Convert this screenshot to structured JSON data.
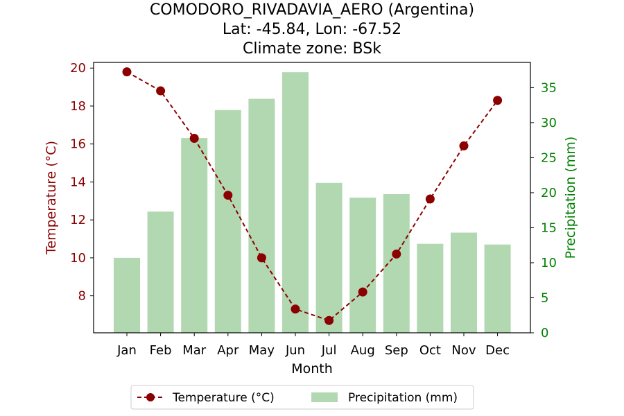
{
  "chart_data": {
    "type": "bar+line",
    "title_lines": [
      "COMODORO_RIVADAVIA_AERO (Argentina)",
      "Lat: -45.84, Lon: -67.52",
      "Climate zone: BSk"
    ],
    "xlabel": "Month",
    "ylabel_left": "Temperature (°C)",
    "ylabel_right": "Precipitation (mm)",
    "categories": [
      "Jan",
      "Feb",
      "Mar",
      "Apr",
      "May",
      "Jun",
      "Jul",
      "Aug",
      "Sep",
      "Oct",
      "Nov",
      "Dec"
    ],
    "left_axis": {
      "ticks": [
        8,
        10,
        12,
        14,
        16,
        18,
        20
      ],
      "ylim": [
        6.05,
        20.3
      ]
    },
    "right_axis": {
      "ticks": [
        0,
        5,
        10,
        15,
        20,
        25,
        30,
        35
      ],
      "ylim": [
        0,
        38.6
      ]
    },
    "series": [
      {
        "name": "Temperature (°C)",
        "kind": "line",
        "axis": "left",
        "color": "#8b0000",
        "values": [
          19.8,
          18.8,
          16.3,
          13.3,
          10.0,
          7.3,
          6.7,
          8.2,
          10.2,
          13.1,
          15.9,
          18.3
        ]
      },
      {
        "name": "Precipitation (mm)",
        "kind": "bar",
        "axis": "right",
        "color": "#b2d8b2",
        "values": [
          10.7,
          17.3,
          27.8,
          31.8,
          33.4,
          37.2,
          21.4,
          19.3,
          19.8,
          12.7,
          14.3,
          12.6
        ]
      }
    ],
    "legend_position": "bottom-center",
    "grid": false
  },
  "colors": {
    "temperature": "#8b0000",
    "temperature_axis": "#8b0000",
    "precipitation_bar": "#b2d8b2",
    "precipitation_axis": "#008000"
  }
}
